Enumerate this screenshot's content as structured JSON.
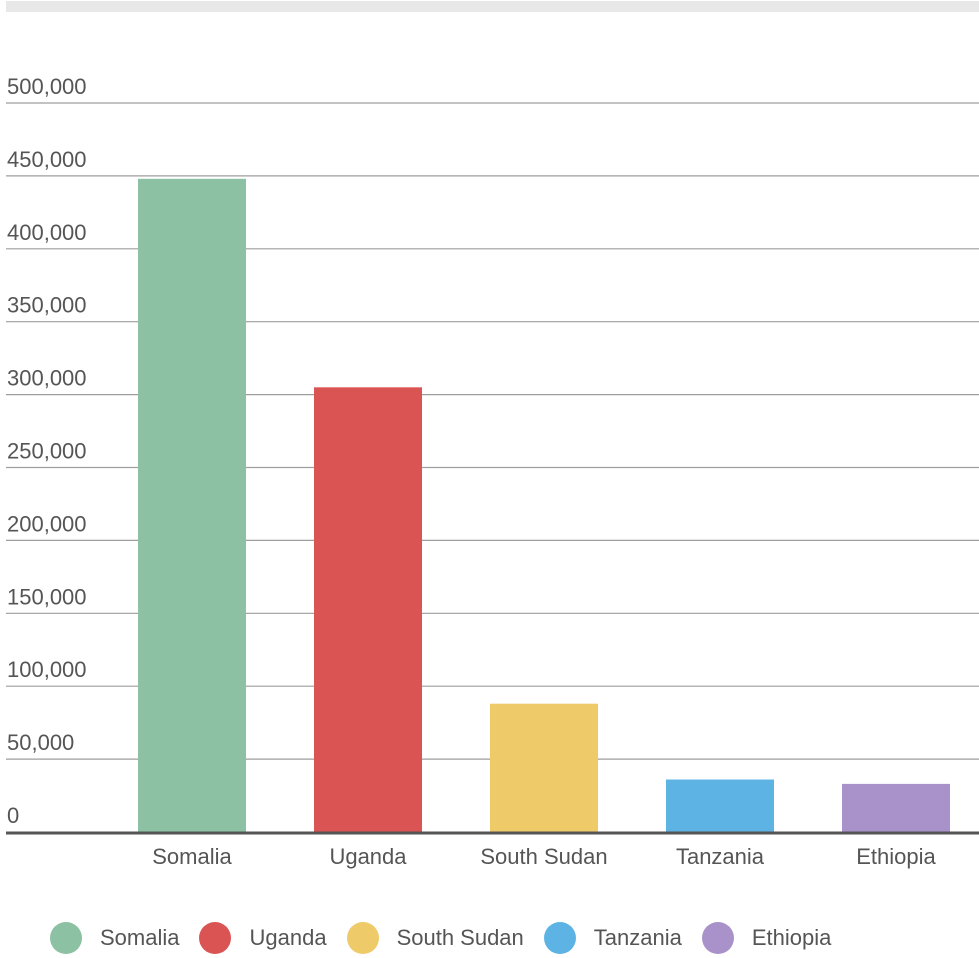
{
  "chart_data": {
    "type": "bar",
    "categories": [
      "Somalia",
      "Uganda",
      "South Sudan",
      "Tanzania",
      "Ethiopia"
    ],
    "values": [
      448000,
      305000,
      88000,
      36000,
      33000
    ],
    "colors": [
      "#8cc2a3",
      "#da5454",
      "#efca69",
      "#5db4e4",
      "#a992c9"
    ],
    "ylim": [
      0,
      500000
    ],
    "yticks": [
      0,
      50000,
      100000,
      150000,
      200000,
      250000,
      300000,
      350000,
      400000,
      450000,
      500000
    ],
    "ytick_labels": [
      "0",
      "50,000",
      "100,000",
      "150,000",
      "200,000",
      "250,000",
      "300,000",
      "350,000",
      "400,000",
      "450,000",
      "500,000"
    ],
    "grid": true,
    "legend": "bottom",
    "title": "",
    "xlabel": "",
    "ylabel": ""
  },
  "legend": {
    "items": [
      {
        "label": "Somalia",
        "color": "#8cc2a3"
      },
      {
        "label": "Uganda",
        "color": "#da5454"
      },
      {
        "label": "South Sudan",
        "color": "#efca69"
      },
      {
        "label": "Tanzania",
        "color": "#5db4e4"
      },
      {
        "label": "Ethiopia",
        "color": "#a992c9"
      }
    ]
  }
}
